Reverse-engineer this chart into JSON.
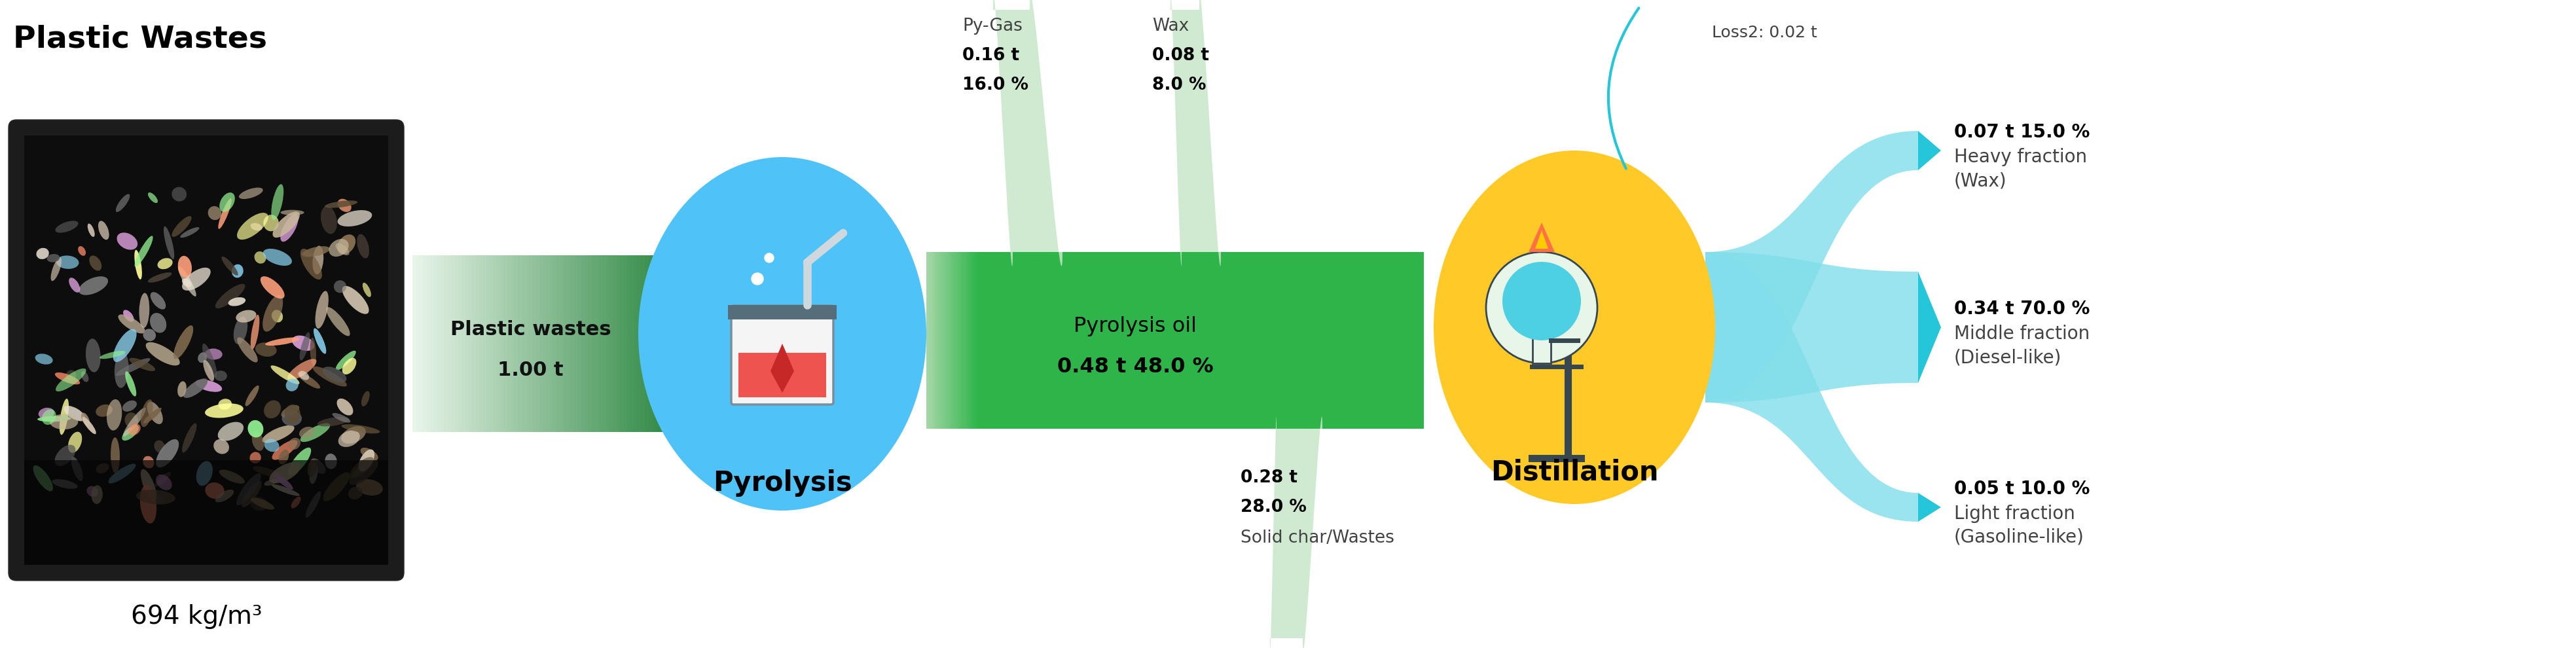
{
  "plastic_wastes_title": "Plastic Wastes",
  "plastic_wastes_density": "694 kg/m³",
  "input_label1": "Plastic wastes",
  "input_label2": "1.00 t",
  "pyrolysis_label": "Pyrolysis",
  "distillation_label": "Distillation",
  "pygas_label": "Py-Gas",
  "pygas_amount": "0.16 t",
  "pygas_pct": "16.0 %",
  "wax_label": "Wax",
  "wax_amount": "0.08 t",
  "wax_pct": "8.0 %",
  "pyoil_label": "Pyrolysis oil",
  "pyoil_amount": "0.48 t 48.0 %",
  "char_amount": "0.28 t",
  "char_pct": "28.0 %",
  "char_label": "Solid char/Wastes",
  "loss2_label": "Loss2: 0.02 t",
  "heavy_amount": "0.07 t 15.0 %",
  "heavy_label1": "Heavy fraction",
  "heavy_label2": "(Wax)",
  "middle_amount": "0.34 t 70.0 %",
  "middle_label1": "Middle fraction",
  "middle_label2": "(Diesel-like)",
  "light_amount": "0.05 t 10.0 %",
  "light_label1": "Light fraction",
  "light_label2": "(Gasoline-like)",
  "bg_color": "#ffffff",
  "green_dark": "#1e7e34",
  "green_mid": "#28a745",
  "green_light": "#c3e6cb",
  "green_flow": "#2db54a",
  "teal_dark": "#17a2b8",
  "teal_light": "#b2dfdb",
  "teal_mid": "#80cbc4",
  "blue_circle": "#4fc3f7",
  "gold_circle": "#ffca28",
  "pygas_green": "#a8d5a2",
  "loss_teal": "#26c6da"
}
